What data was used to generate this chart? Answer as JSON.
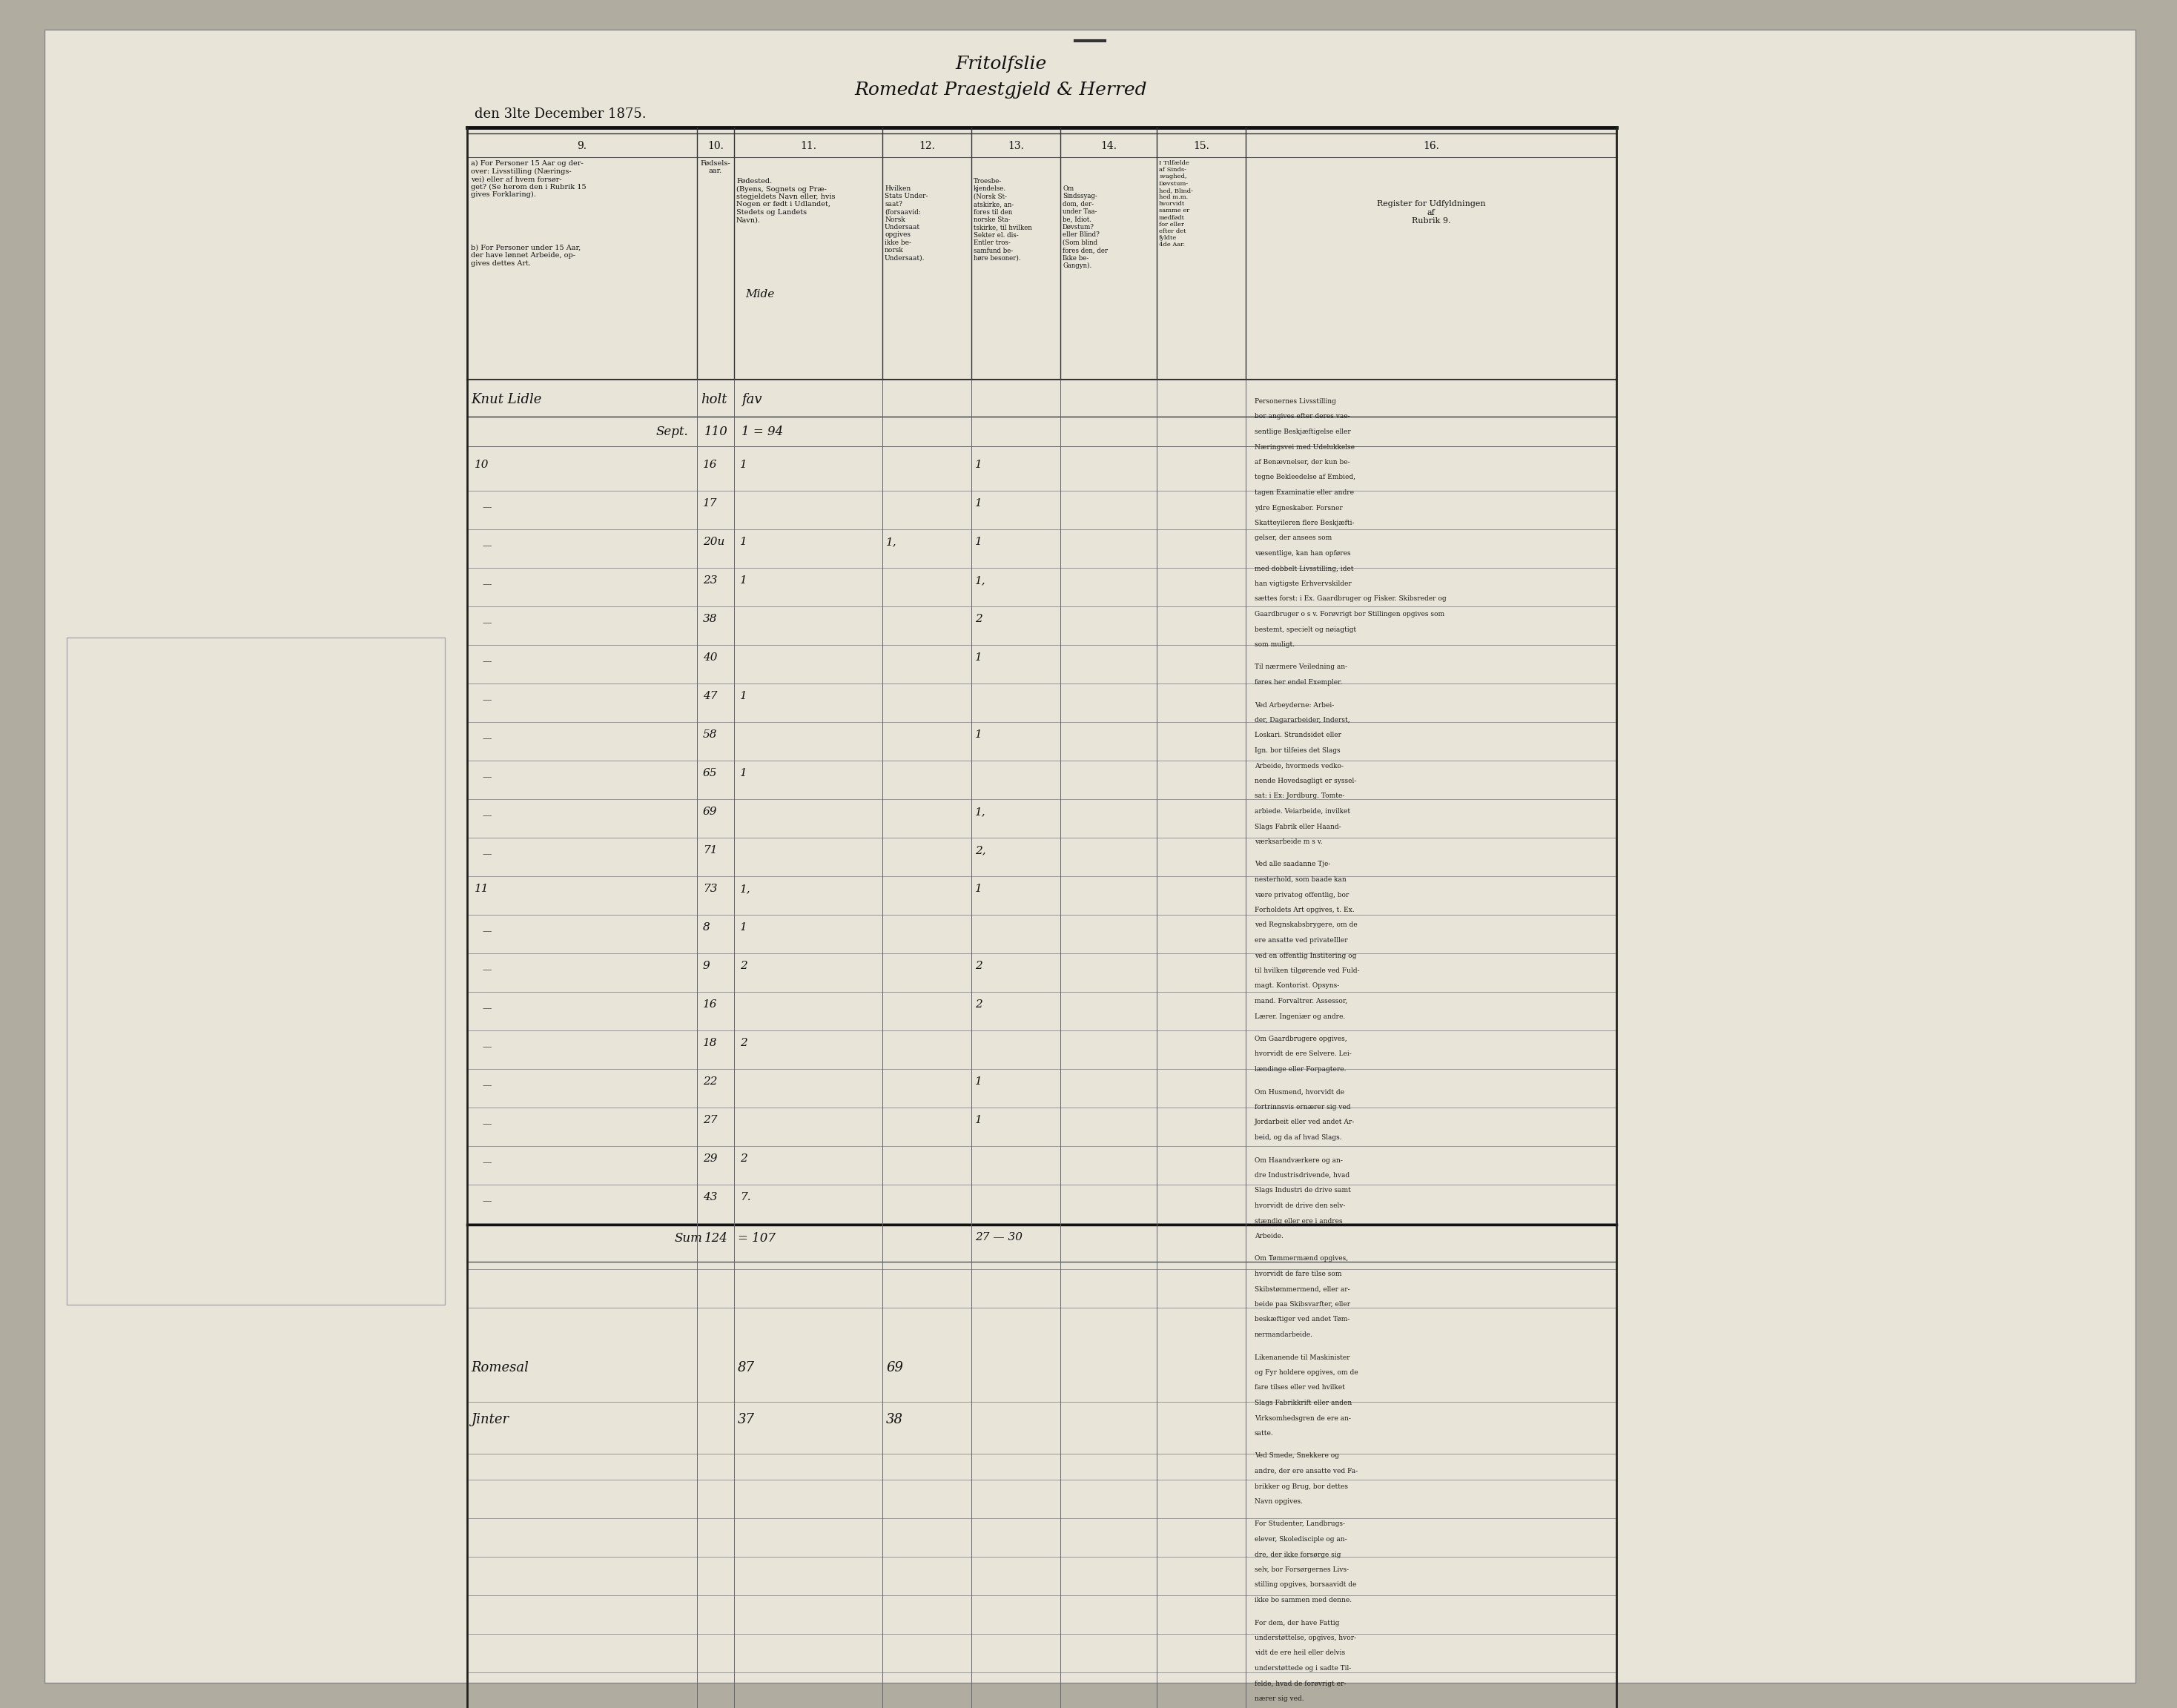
{
  "title_line1": "Fritolfslie",
  "title_line2": "Romedat Praestgjeld & Herred",
  "date_text": "den 3lte December 1875.",
  "paper_color": "#e8e4d8",
  "bg_color": "#b0aca0",
  "col_headers_nums": [
    "9.",
    "10.",
    "11.",
    "12.",
    "13.",
    "14.",
    "15.",
    "16."
  ],
  "col9a": "a) For Personer 15 Aar og der-\nover: Livsstilling (Nærings-\nvei) eller af hvem forsør-\nget? (Se herom den i Rubrik 15\ngives Forklaring).",
  "col9b": "b) For Personer under 15 Aar,\nder have lønnet Arbeide, op-\ngives dettes Art.",
  "col10h": "Fødsels-\naar.",
  "col11h": "Fødested.\n(Byens, Sognets og Præ-\nstegjeldets Navn eller, hvis\nNogen er født i Udlandet,\nStedets og Landets\nNavn).",
  "col12h": "Hvilken\nStats Under-\nsaat?\n(forsaavid:\nNorsk\nUndersaat\nopgives\nikke be-\nnorsk\nUndersaat).",
  "col13h": "Troesbe-\nkjendelse.\n(Norsk St-\natskirke, an-\nfores til den\nnorske Sta-\ntskirke, til hvilken\nSekter el. dis-\nEntler tros-\nsamfund be-\nhøre besoner).",
  "col14h": "Om\nSindssyag-\ndom, der-\nunder Taa-\nbe, Idiot.\nDøvstum?\neller Blind?\n(Som blind\nfores den, der\nIkke be-\nGangyn).",
  "col15h": "I Tilfælde\naf Sinds-\nsvaghed,\nDøvstum-\nhed, Blind-\nhed m.m.\nhvorvidt\nsamme er\nmedfødt\nfor eller\nefter det\nfyldte\n4de Aar.",
  "col16h": "Register for Udfyldningen\naf\nRubrik 9.",
  "col16_text": "Personernes Livsstilling\nbor angives efter deres vae-\nsentlige Beskjæftigelse eller\nNæringsvei med Udelukkelse\naf Benævnelser, der kun be-\ntegne Bekleedelse af Embied,\ntagen Examinatie eller andre\nydre Egneskaber. Forsner\nSkatteyileren flere Beskjæfti-\ngelser, der ansees som\nvæsentlige, kan han opføres\nmed dobbelt Livsstilling, idet\nhan vigtigste Erhvervskilder\nsættes forst: i Ex. Gaardbruger og Fisker. Skibsreder og\nGaardbruger o s v. Forøvrigt bor Stillingen opgives som\nbestemt, specielt og nøiagtigt\nsom muligt.\n\nTil nærmere Veiledning an-\nføres her endel Exempler.\n\nVed Arbeyderne: Arbei-\nder, Dagararbeider, Inderst,\nLoskari. Strandsidet eller\nIgn. bor tilfeies det Slags\nArbeide, hvormeds vedko-\nnende Hovedsagligt er syssel-\nsat: i Ex: Jordburg. Tomte-\narbiede. Veiarbeide, invilket\nSlags Fabrik eller Haand-\nværksarbeide m s v.\n\nVed alle saadanne Tje-\nnesterhold, som baade kan\nvære privatog offentlig, bor\nForholdets Art opgives, t. Ex.\nved Regnskabsbrygere, om de\nere ansatte ved privateIller\nved en offentlig Institering og\ntil hvilken tilgørende ved Fuld-\nmagt. Kontorist. Opsyns-\nmand. Forvaltrer. Assessor,\nLærer. Ingeniær og andre.\n\nOm Gaardbrugere opgives,\nhvorvidt de ere Selvere. Lei-\nlændinge eller Forpagtere.\n\nOm Husmend, hvorvidt de\nfortrinnsvis ernærer sig ved\nJordarbeit eller ved andet Ar-\nbeid, og da af hvad Slags.\n\nOm Haandværkere og an-\ndre Industrisdrivende, hvad\nSlags Industri de drive samt\nhvorvidt de drive den selv-\nstændig eller ere i andres\nArbeide.\n\nOm Tømmermænd opgives,\nhvorvidt de fare tilse som\nSkibstømmermend, eller ar-\nbeide paa Skibsvarfter, eller\nbeskæftiger ved andet Tøm-\nnermandarbeide.\n\nLikenanende til Maskinister\nog Fyr holdere opgives, om de\nfare tilses eller ved hvilket\nSlags Fabrikkrift eller anden\nVirksomhedsgren de ere an-\nsatte.\n\nVed Smede, Snekkere og\nandre, der ere ansatte ved Fa-\nbrikker og Brug, bor dettes\nNavn opgives.\n\nFor Studenter, Landbrugs-\nelever, Skoledisciple og an-\ndre, der ikke forsørge sig\nselv, bor Forsørgernes Livs-\nstilling opgives, borsaavidt de\nikke bo sammen med denne.\n\nFor dem, der have Fattig\nunderstøttelse, opgives, hvor-\nvidt de ere heil eller delvis\nunderstøttede og i sadte Til-\nfelde, hvad de forøvrigt er-\nnærer sig ved.",
  "handwritten_col9": "Knut Lidle",
  "handwritten_col11": "holt",
  "handwritten_col12": "fav",
  "handwritten_mide": "Mide",
  "sept_label": "Sept.",
  "sept_110": "110",
  "sept_eq": "1 = 94",
  "rows": [
    {
      "c9": "10",
      "c10": "16",
      "c11": "1",
      "c12": "",
      "c13": "1",
      "c14": "",
      "c15": ""
    },
    {
      "c9": "—",
      "c10": "17",
      "c11": "",
      "c12": "",
      "c13": "1",
      "c14": "",
      "c15": ""
    },
    {
      "c9": "—",
      "c10": "20u",
      "c11": "1",
      "c12": "1,",
      "c13": "1",
      "c14": "",
      "c15": ""
    },
    {
      "c9": "—",
      "c10": "23",
      "c11": "1",
      "c12": "",
      "c13": "1,",
      "c14": "",
      "c15": ""
    },
    {
      "c9": "—",
      "c10": "38",
      "c11": "",
      "c12": "",
      "c13": "2",
      "c14": "",
      "c15": ""
    },
    {
      "c9": "—",
      "c10": "40",
      "c11": "",
      "c12": "",
      "c13": "1",
      "c14": "",
      "c15": ""
    },
    {
      "c9": "—",
      "c10": "47",
      "c11": "1",
      "c12": "",
      "c13": "",
      "c14": "",
      "c15": ""
    },
    {
      "c9": "—",
      "c10": "58",
      "c11": "",
      "c12": "",
      "c13": "1",
      "c14": "",
      "c15": ""
    },
    {
      "c9": "—",
      "c10": "65",
      "c11": "1",
      "c12": "",
      "c13": "",
      "c14": "",
      "c15": ""
    },
    {
      "c9": "—",
      "c10": "69",
      "c11": "",
      "c12": "",
      "c13": "1,",
      "c14": "",
      "c15": ""
    },
    {
      "c9": "—",
      "c10": "71",
      "c11": "",
      "c12": "",
      "c13": "2,",
      "c14": "",
      "c15": ""
    },
    {
      "c9": "11",
      "c10": "73",
      "c11": "1,",
      "c12": "",
      "c13": "1",
      "c14": "",
      "c15": ""
    },
    {
      "c9": "—",
      "c10": "8",
      "c11": "1",
      "c12": "",
      "c13": "",
      "c14": "",
      "c15": ""
    },
    {
      "c9": "—",
      "c10": "9",
      "c11": "2",
      "c12": "",
      "c13": "2",
      "c14": "",
      "c15": ""
    },
    {
      "c9": "—",
      "c10": "16",
      "c11": "",
      "c12": "",
      "c13": "2",
      "c14": "",
      "c15": ""
    },
    {
      "c9": "—",
      "c10": "18",
      "c11": "2",
      "c12": "",
      "c13": "",
      "c14": "",
      "c15": ""
    },
    {
      "c9": "—",
      "c10": "22",
      "c11": "",
      "c12": "",
      "c13": "1",
      "c14": "",
      "c15": ""
    },
    {
      "c9": "—",
      "c10": "27",
      "c11": "",
      "c12": "",
      "c13": "1",
      "c14": "",
      "c15": ""
    },
    {
      "c9": "—",
      "c10": "29",
      "c11": "2",
      "c12": "",
      "c13": "",
      "c14": "",
      "c15": ""
    },
    {
      "c9": "—",
      "c10": "43",
      "c11": "7.",
      "c12": "",
      "c13": "",
      "c14": "",
      "c15": ""
    }
  ],
  "sum_label": "Sum",
  "sum_110": "124",
  "sum_eq": "= 107",
  "sum_right": "27 — 30",
  "summ": [
    {
      "label": "Romesal",
      "v1": "87",
      "v2": "69"
    },
    {
      "label": "Jinter",
      "v1": "37",
      "v2": "38"
    }
  ],
  "n_blank_rows_after_sum": 2,
  "n_blank_rows_after_summ": 10
}
